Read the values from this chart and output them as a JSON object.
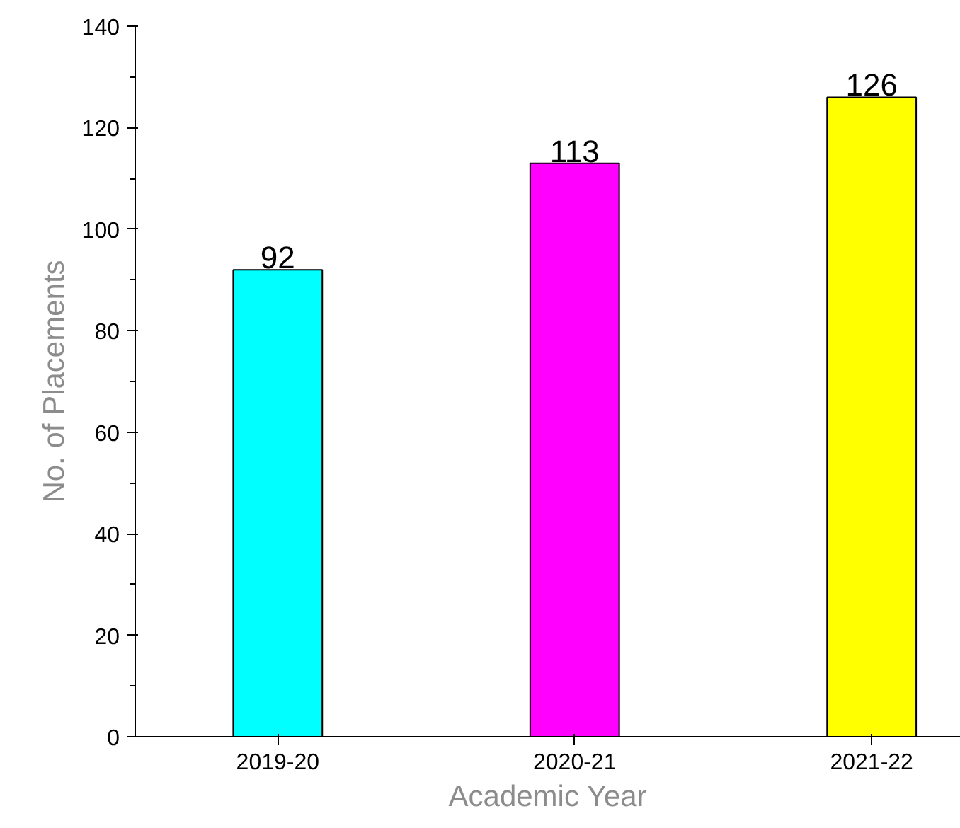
{
  "chart_data": {
    "type": "bar",
    "xlabel": "Academic Year",
    "ylabel": "No. of Placements",
    "categories": [
      "2019-20",
      "2020-21",
      "2021-22"
    ],
    "values": [
      92,
      113,
      126
    ],
    "colors": [
      "#00ffff",
      "#ff00ff",
      "#ffff00"
    ],
    "ylim": [
      0,
      140
    ],
    "yticks": [
      0,
      20,
      40,
      60,
      80,
      100,
      120,
      140
    ],
    "data_labels": true,
    "grid": false
  }
}
